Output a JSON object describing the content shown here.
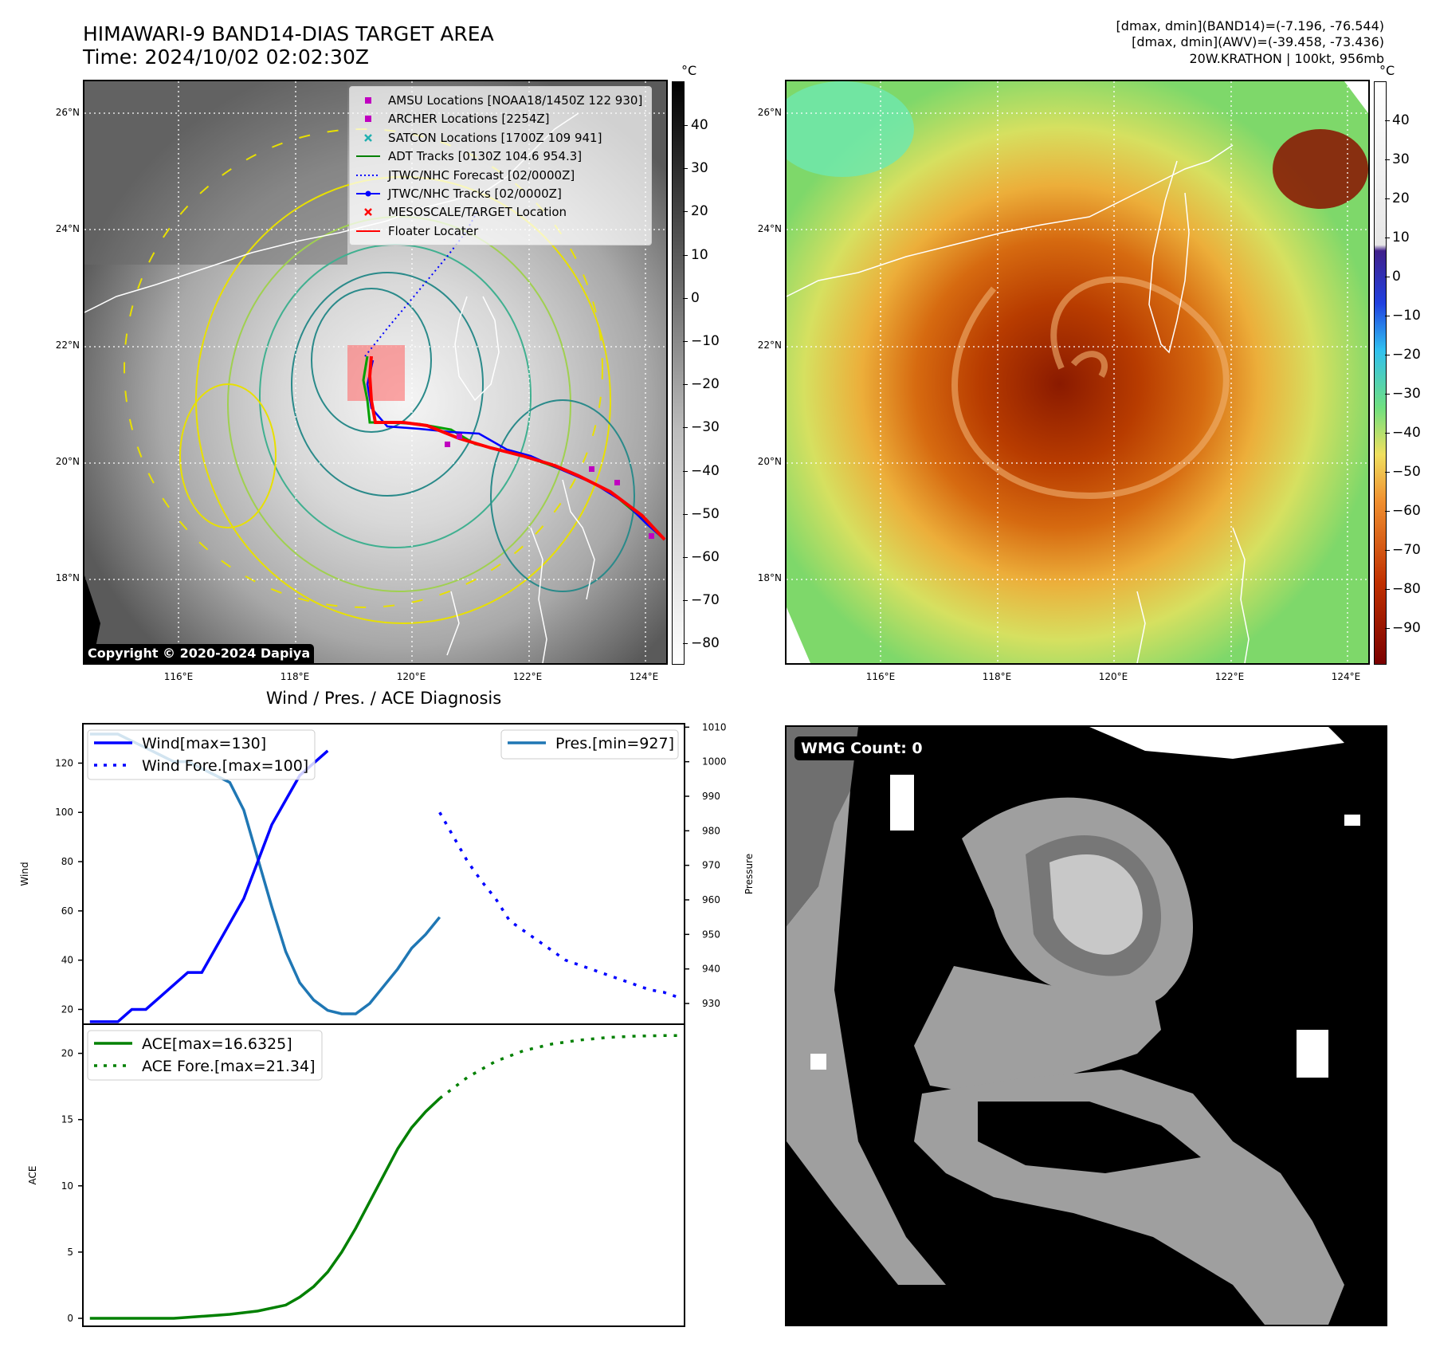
{
  "header": {
    "title_line1": "HIMAWARI-9 BAND14-DIAS TARGET AREA",
    "title_line2": "Time: 2024/10/02 02:02:30Z",
    "info_line1": "[dmax, dmin](BAND14)=(-7.196, -76.544)",
    "info_line2": "[dmax, dmin](AWV)=(-39.458, -73.436)",
    "info_line3": "20W.KRATHON | 100kt, 956mb"
  },
  "map_axes": {
    "lat_labels": [
      "26°N",
      "24°N",
      "22°N",
      "20°N",
      "18°N"
    ],
    "lon_labels": [
      "116°E",
      "118°E",
      "120°E",
      "122°E",
      "124°E"
    ]
  },
  "ir_map": {
    "legend": [
      {
        "label": "AMSU Locations [NOAA18/1450Z 122 930]",
        "color": "#c000c0",
        "marker": "square"
      },
      {
        "label": "ARCHER Locations [2254Z]",
        "color": "#c000c0",
        "marker": "square"
      },
      {
        "label": "SATCON Locations [1700Z 109 941]",
        "color": "#20b0b0",
        "marker": "x"
      },
      {
        "label": "ADT Tracks [0130Z 104.6 954.3]",
        "color": "#008000",
        "marker": "line"
      },
      {
        "label": "JTWC/NHC Forecast [02/0000Z]",
        "color": "#0000ff",
        "marker": "dotted"
      },
      {
        "label": "JTWC/NHC Tracks [02/0000Z]",
        "color": "#0000ff",
        "marker": "line-dot"
      },
      {
        "label": "MESOSCALE/TARGET Location",
        "color": "#ff0000",
        "marker": "x"
      },
      {
        "label": "Floater Locater",
        "color": "#ff0000",
        "marker": "line"
      }
    ],
    "copyright": "Copyright © 2020-2024 Dapiya",
    "colorbar_unit": "°C",
    "colorbar_ticks": [
      "40",
      "30",
      "20",
      "10",
      "0",
      "−10",
      "−20",
      "−30",
      "−40",
      "−50",
      "−60",
      "−70",
      "−80"
    ]
  },
  "awv_map": {
    "colorbar_unit": "°C",
    "colorbar_ticks": [
      "40",
      "30",
      "20",
      "10",
      "0",
      "−10",
      "−20",
      "−30",
      "−40",
      "−50",
      "−60",
      "−70",
      "−80",
      "−90"
    ]
  },
  "wmg_panel": {
    "label": "WMG Count: 0"
  },
  "chart_data": [
    {
      "type": "line",
      "title": "Wind / Pres. / ACE Diagnosis",
      "ylabel": "Wind",
      "ylabel_right": "Pressure",
      "ylim": [
        14,
        136
      ],
      "ylim_right": [
        924,
        1011
      ],
      "y_ticks": [
        20,
        40,
        60,
        80,
        100,
        120
      ],
      "y_ticks_right": [
        930,
        940,
        950,
        960,
        970,
        980,
        990,
        1000,
        1010
      ],
      "series": [
        {
          "name": "Wind[max=130]",
          "axis": "left",
          "color": "#0000ff",
          "style": "solid",
          "x": [
            0,
            1,
            2,
            3,
            4,
            5,
            6,
            7,
            8,
            9,
            10,
            11,
            12,
            13,
            14,
            15,
            16,
            17
          ],
          "values": [
            15,
            15,
            15,
            20,
            20,
            25,
            30,
            35,
            35,
            45,
            55,
            65,
            80,
            95,
            105,
            115,
            120,
            125
          ]
        },
        {
          "name": "Wind Fore.[max=100]",
          "axis": "left",
          "color": "#0000ff",
          "style": "dotted",
          "x": [
            25,
            26,
            27,
            28,
            29,
            30,
            31,
            32,
            33,
            34,
            35,
            36,
            37,
            38,
            39,
            40,
            41,
            42
          ],
          "values": [
            100,
            90,
            80,
            72,
            65,
            56,
            52,
            48,
            44,
            40,
            38,
            36,
            34,
            32,
            30,
            28,
            27,
            25
          ]
        },
        {
          "name": "Pres.[min=927]",
          "axis": "right",
          "color": "#1f77b4",
          "style": "solid",
          "x": [
            0,
            1,
            2,
            3,
            4,
            5,
            6,
            7,
            8,
            9,
            10,
            11,
            12,
            13,
            14,
            15,
            16,
            17,
            18,
            19,
            20,
            21,
            22,
            23,
            24,
            25
          ],
          "values": [
            1008,
            1008,
            1008,
            1006,
            1004,
            1002,
            1000,
            1000,
            998,
            996,
            994,
            986,
            972,
            958,
            945,
            936,
            931,
            928,
            927,
            927,
            930,
            935,
            940,
            946,
            950,
            955
          ]
        }
      ]
    },
    {
      "type": "line",
      "ylabel": "ACE",
      "ylim": [
        -0.6,
        22.2
      ],
      "y_ticks": [
        0,
        5,
        10,
        15,
        20
      ],
      "series": [
        {
          "name": "ACE[max=16.6325]",
          "color": "#008000",
          "style": "solid",
          "x": [
            0,
            2,
            4,
            6,
            8,
            10,
            12,
            14,
            15,
            16,
            17,
            18,
            19,
            20,
            21,
            22,
            23,
            24,
            25
          ],
          "values": [
            0,
            0,
            0,
            0,
            0.15,
            0.3,
            0.55,
            1.0,
            1.6,
            2.4,
            3.5,
            5.0,
            6.8,
            8.8,
            10.8,
            12.8,
            14.4,
            15.6,
            16.6
          ]
        },
        {
          "name": "ACE Fore.[max=21.34]",
          "color": "#008000",
          "style": "dotted",
          "x": [
            25,
            27,
            29,
            31,
            33,
            35,
            37,
            39,
            41,
            42
          ],
          "values": [
            16.6,
            18.2,
            19.4,
            20.2,
            20.7,
            21.0,
            21.2,
            21.3,
            21.34,
            21.34
          ]
        }
      ]
    }
  ]
}
